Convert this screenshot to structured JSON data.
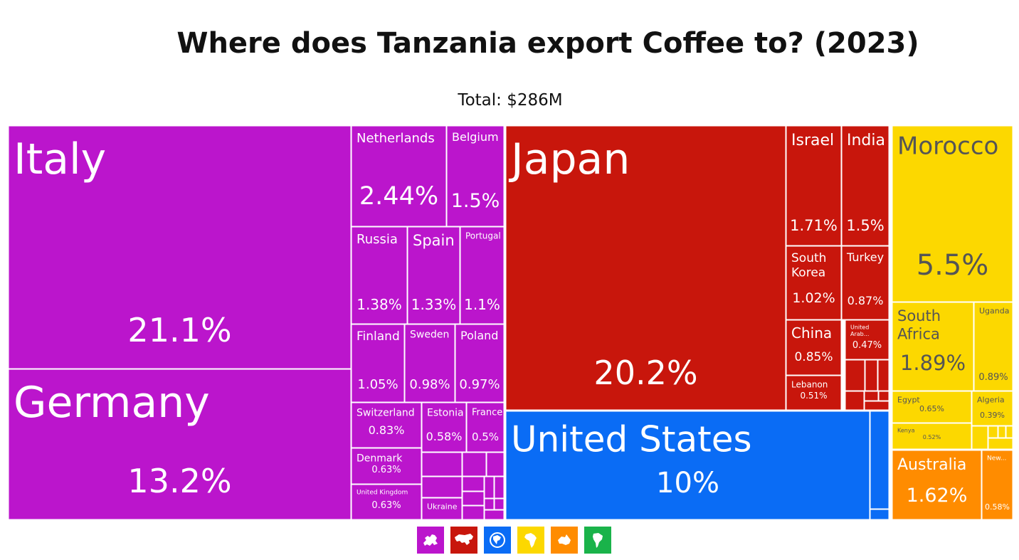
{
  "title": "Where does Tanzania export Coffee to? (2023)",
  "subtitle": "Total: $286M",
  "colors": {
    "europe": "#bb15cc",
    "asia": "#c8160c",
    "north_america": "#0a6cf5",
    "africa": "#fcd800",
    "oceania": "#ff8c00",
    "south_america": "#1ab34a"
  },
  "legend": [
    {
      "region": "europe",
      "icon": "europe-map-icon"
    },
    {
      "region": "asia",
      "icon": "asia-map-icon"
    },
    {
      "region": "north_america",
      "icon": "north-america-map-icon"
    },
    {
      "region": "africa",
      "icon": "africa-map-icon"
    },
    {
      "region": "oceania",
      "icon": "oceania-map-icon"
    },
    {
      "region": "south_america",
      "icon": "south-america-map-icon"
    }
  ],
  "chart_data": {
    "type": "treemap",
    "total": "$286M",
    "groups": [
      {
        "region": "europe",
        "items": [
          {
            "label": "Italy",
            "value": 21.1,
            "pct": "21.1%"
          },
          {
            "label": "Germany",
            "value": 13.2,
            "pct": "13.2%"
          },
          {
            "label": "Netherlands",
            "value": 2.44,
            "pct": "2.44%"
          },
          {
            "label": "Belgium",
            "value": 1.5,
            "pct": "1.5%"
          },
          {
            "label": "Russia",
            "value": 1.38,
            "pct": "1.38%"
          },
          {
            "label": "Spain",
            "value": 1.33,
            "pct": "1.33%"
          },
          {
            "label": "Portugal",
            "value": 1.1,
            "pct": "1.1%"
          },
          {
            "label": "Finland",
            "value": 1.05,
            "pct": "1.05%"
          },
          {
            "label": "Sweden",
            "value": 0.98,
            "pct": "0.98%"
          },
          {
            "label": "Poland",
            "value": 0.97,
            "pct": "0.97%"
          },
          {
            "label": "Switzerland",
            "value": 0.83,
            "pct": "0.83%"
          },
          {
            "label": "Estonia",
            "value": 0.58,
            "pct": "0.58%"
          },
          {
            "label": "France",
            "value": 0.5,
            "pct": "0.5%"
          },
          {
            "label": "Denmark",
            "value": 0.63,
            "pct": "0.63%"
          },
          {
            "label": "United Kingdom",
            "value": 0.63,
            "pct": "0.63%"
          },
          {
            "label": "Ukraine",
            "value": null,
            "pct": ""
          }
        ]
      },
      {
        "region": "asia",
        "items": [
          {
            "label": "Japan",
            "value": 20.2,
            "pct": "20.2%"
          },
          {
            "label": "Israel",
            "value": 1.71,
            "pct": "1.71%"
          },
          {
            "label": "India",
            "value": 1.5,
            "pct": "1.5%"
          },
          {
            "label": "South Korea",
            "value": 1.02,
            "pct": "1.02%"
          },
          {
            "label": "Turkey",
            "value": 0.87,
            "pct": "0.87%"
          },
          {
            "label": "China",
            "value": 0.85,
            "pct": "0.85%"
          },
          {
            "label": "United Arab...",
            "value": 0.47,
            "pct": "0.47%"
          },
          {
            "label": "Lebanon",
            "value": 0.51,
            "pct": "0.51%"
          }
        ]
      },
      {
        "region": "north_america",
        "items": [
          {
            "label": "United States",
            "value": 10,
            "pct": "10%"
          }
        ]
      },
      {
        "region": "africa",
        "items": [
          {
            "label": "Morocco",
            "value": 5.5,
            "pct": "5.5%"
          },
          {
            "label": "South Africa",
            "value": 1.89,
            "pct": "1.89%"
          },
          {
            "label": "Uganda",
            "value": 0.89,
            "pct": "0.89%"
          },
          {
            "label": "Egypt",
            "value": 0.65,
            "pct": "0.65%"
          },
          {
            "label": "Algeria",
            "value": 0.39,
            "pct": "0.39%"
          },
          {
            "label": "Kenya",
            "value": 0.52,
            "pct": "0.52%"
          }
        ]
      },
      {
        "region": "oceania",
        "items": [
          {
            "label": "Australia",
            "value": 1.62,
            "pct": "1.62%"
          },
          {
            "label": "New...",
            "value": 0.58,
            "pct": "0.58%"
          }
        ]
      }
    ]
  }
}
